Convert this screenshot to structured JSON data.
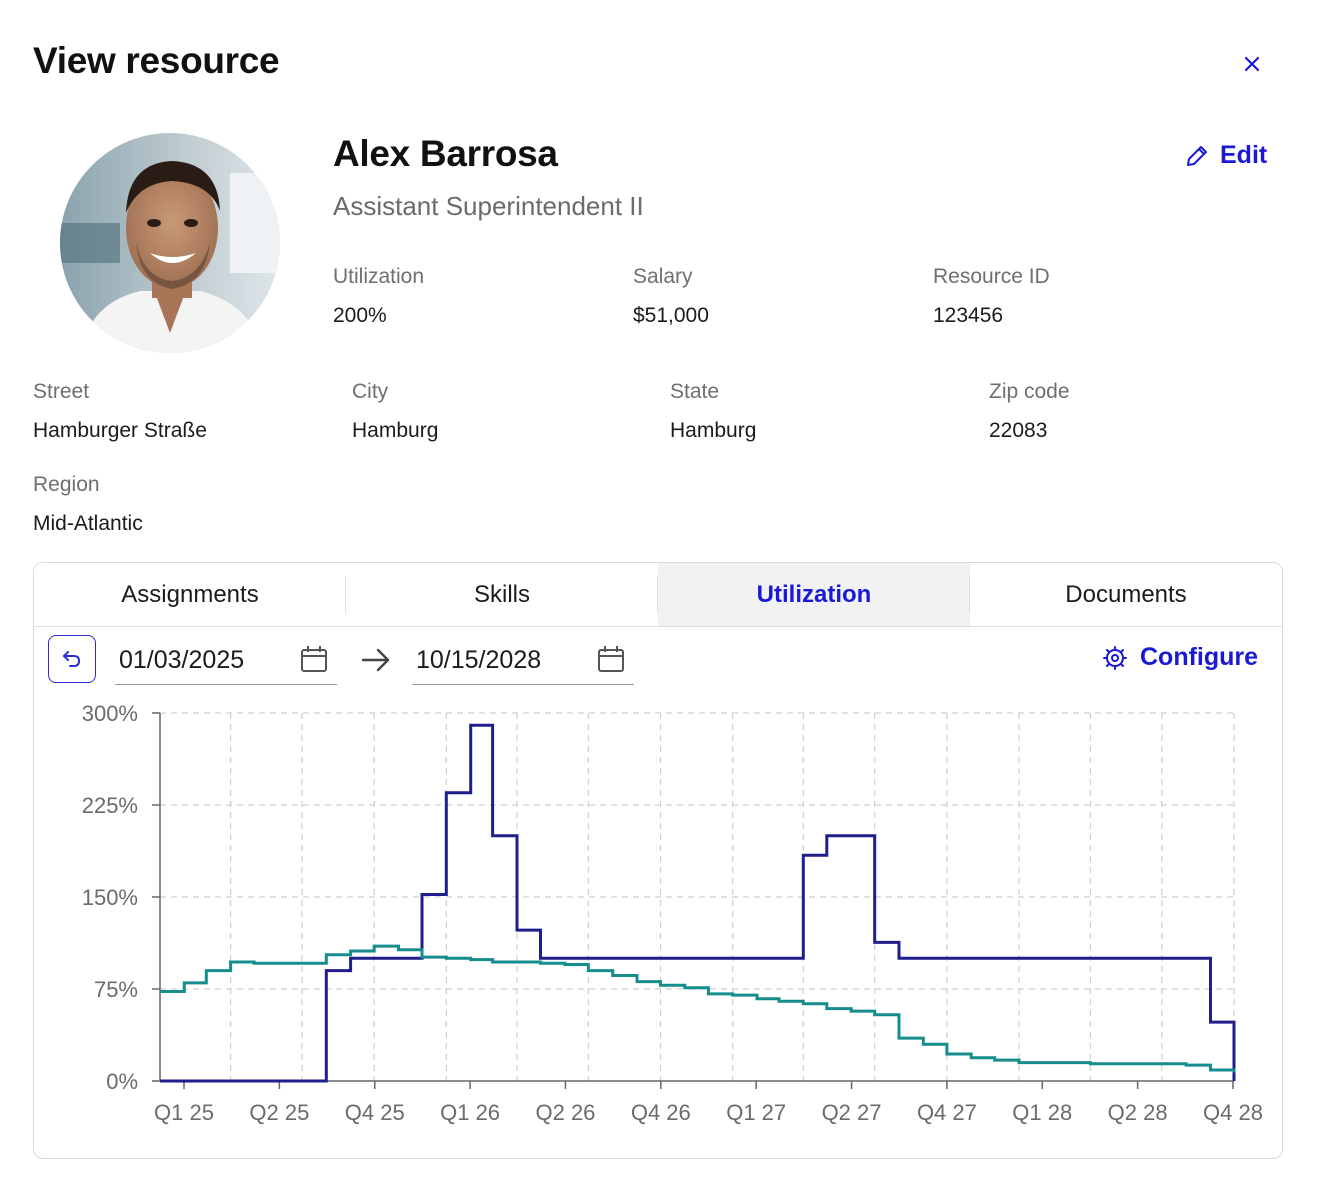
{
  "header": {
    "title": "View resource"
  },
  "profile": {
    "name": "Alex Barrosa",
    "job_title": "Assistant Superintendent II",
    "edit_label": "Edit",
    "fields": [
      {
        "label": "Utilization",
        "value": "200%"
      },
      {
        "label": "Salary",
        "value": "$51,000"
      },
      {
        "label": "Resource ID",
        "value": "123456"
      }
    ]
  },
  "address": [
    {
      "label": "Street",
      "value": "Hamburger Straße"
    },
    {
      "label": "City",
      "value": "Hamburg"
    },
    {
      "label": "State",
      "value": "Hamburg"
    },
    {
      "label": "Zip code",
      "value": "22083"
    }
  ],
  "region": {
    "label": "Region",
    "value": "Mid-Atlantic"
  },
  "tabs": [
    {
      "label": "Assignments"
    },
    {
      "label": "Skills"
    },
    {
      "label": "Utilization",
      "active": true
    },
    {
      "label": "Documents"
    }
  ],
  "date_range": {
    "start": "01/03/2025",
    "end": "10/15/2028"
  },
  "configure_label": "Configure",
  "colors": {
    "accent": "#1a1ad6",
    "navy_series": "#1e1e8c",
    "teal_series": "#178c8c"
  },
  "chart_data": {
    "type": "line",
    "step": true,
    "ylim": [
      0,
      300
    ],
    "y_ticks": [
      "0%",
      "75%",
      "150%",
      "225%",
      "300%"
    ],
    "y_tick_values": [
      0,
      75,
      150,
      225,
      300
    ],
    "x_tick_labels": [
      "Q1 25",
      "Q2 25",
      "Q4 25",
      "Q1 26",
      "Q2 26",
      "Q4 26",
      "Q1 27",
      "Q2 27",
      "Q4 27",
      "Q1 28",
      "Q2 28",
      "Q4 28"
    ],
    "grid": true,
    "series": [
      {
        "color": "#1e1e8c",
        "x": [
          "2025-01-01",
          "2025-08-01",
          "2025-09-01",
          "2025-11-01",
          "2025-12-01",
          "2026-01-01",
          "2026-02-01",
          "2026-03-01",
          "2026-04-01",
          "2026-05-01",
          "2027-04-01",
          "2027-05-01",
          "2027-07-01",
          "2027-08-01",
          "2028-08-01",
          "2028-09-01",
          "2028-10-01"
        ],
        "y": [
          0,
          90,
          100,
          100,
          152,
          235,
          290,
          200,
          123,
          100,
          184,
          200,
          113,
          100,
          100,
          48,
          0
        ]
      },
      {
        "color": "#178c8c",
        "x": [
          "2025-01-01",
          "2025-02-01",
          "2025-03-01",
          "2025-04-01",
          "2025-05-01",
          "2025-06-01",
          "2025-07-01",
          "2025-08-01",
          "2025-09-01",
          "2025-10-01",
          "2025-11-01",
          "2025-12-01",
          "2026-01-01",
          "2026-02-01",
          "2026-03-01",
          "2026-04-01",
          "2026-05-01",
          "2026-06-01",
          "2026-07-01",
          "2026-08-01",
          "2026-09-01",
          "2026-10-01",
          "2026-11-01",
          "2026-12-01",
          "2027-01-01",
          "2027-02-01",
          "2027-03-01",
          "2027-04-01",
          "2027-05-01",
          "2027-06-01",
          "2027-07-01",
          "2027-08-01",
          "2027-09-01",
          "2027-10-01",
          "2027-11-01",
          "2027-12-01",
          "2028-01-01",
          "2028-04-01",
          "2028-07-01",
          "2028-08-01",
          "2028-09-01",
          "2028-10-01"
        ],
        "y": [
          73,
          80,
          90,
          97,
          96,
          96,
          96,
          103,
          106,
          110,
          107,
          101,
          100,
          99,
          97,
          97,
          96,
          95,
          90,
          86,
          81,
          78,
          76,
          71,
          70,
          67,
          65,
          63,
          59,
          57,
          54,
          35,
          30,
          22,
          19,
          17,
          15,
          14,
          14,
          13,
          9,
          7
        ]
      }
    ]
  }
}
